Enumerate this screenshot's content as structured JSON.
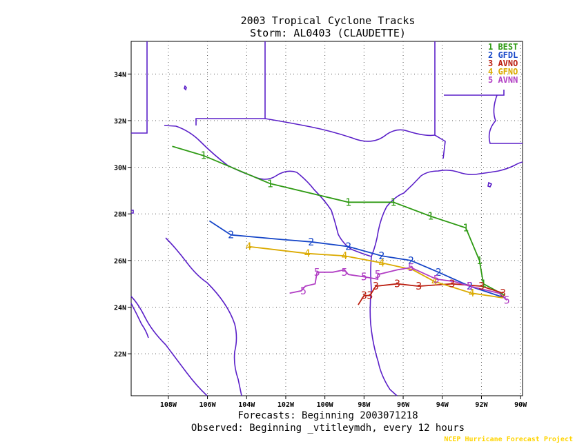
{
  "chart_data": {
    "type": "line",
    "title": "2003 Tropical Cyclone Tracks",
    "subtitle": "Storm: AL0403 (CLAUDETTE)",
    "x_ticks": [
      "108W",
      "106W",
      "104W",
      "102W",
      "100W",
      "98W",
      "96W",
      "94W",
      "92W",
      "90W"
    ],
    "y_ticks": [
      "22N",
      "24N",
      "26N",
      "28N",
      "30N",
      "32N",
      "34N"
    ],
    "xlim": [
      -109.9,
      -89.9
    ],
    "ylim": [
      20.2,
      35.4
    ],
    "grid": true,
    "legend_position": "top-right",
    "series": [
      {
        "id": "1",
        "name": "BEST",
        "color": "#2e9a13",
        "points": [
          [
            -90.8,
            24.5
          ],
          [
            -91.9,
            25.0
          ],
          [
            -92.1,
            26.0
          ],
          [
            -92.8,
            27.4
          ],
          [
            -94.6,
            27.9
          ],
          [
            -96.5,
            28.5
          ],
          [
            -98.8,
            28.5
          ],
          [
            -102.8,
            29.3
          ],
          [
            -106.2,
            30.5
          ],
          [
            -107.8,
            30.9
          ]
        ],
        "markers": [
          [
            -91.9,
            25.0
          ],
          [
            -92.1,
            26.0
          ],
          [
            -92.8,
            27.4
          ],
          [
            -94.6,
            27.9
          ],
          [
            -96.5,
            28.5
          ],
          [
            -98.8,
            28.5
          ],
          [
            -102.8,
            29.3
          ],
          [
            -106.2,
            30.5
          ]
        ]
      },
      {
        "id": "2",
        "name": "GFDL",
        "color": "#1646c8",
        "points": [
          [
            -90.8,
            24.4
          ],
          [
            -92.6,
            24.9
          ],
          [
            -94.2,
            25.5
          ],
          [
            -95.6,
            26.0
          ],
          [
            -97.1,
            26.2
          ],
          [
            -98.8,
            26.6
          ],
          [
            -100.7,
            26.8
          ],
          [
            -102.2,
            26.9
          ],
          [
            -104.8,
            27.1
          ],
          [
            -105.9,
            27.7
          ]
        ],
        "markers": [
          [
            -92.6,
            24.9
          ],
          [
            -94.2,
            25.5
          ],
          [
            -95.6,
            26.0
          ],
          [
            -97.1,
            26.2
          ],
          [
            -98.8,
            26.6
          ],
          [
            -100.7,
            26.8
          ],
          [
            -104.8,
            27.1
          ]
        ]
      },
      {
        "id": "3",
        "name": "AVNO",
        "color": "#bb1e10",
        "points": [
          [
            -90.9,
            24.6
          ],
          [
            -92.0,
            24.9
          ],
          [
            -93.5,
            25.0
          ],
          [
            -95.2,
            24.9
          ],
          [
            -96.3,
            25.0
          ],
          [
            -97.4,
            24.9
          ],
          [
            -97.7,
            24.5
          ],
          [
            -98.0,
            24.5
          ],
          [
            -98.3,
            24.1
          ]
        ],
        "markers": [
          [
            -90.9,
            24.6
          ],
          [
            -92.0,
            24.9
          ],
          [
            -93.5,
            25.0
          ],
          [
            -95.2,
            24.9
          ],
          [
            -96.3,
            25.0
          ],
          [
            -97.4,
            24.9
          ],
          [
            -97.7,
            24.5
          ],
          [
            -98.0,
            24.5
          ]
        ]
      },
      {
        "id": "4",
        "name": "GFNO",
        "color": "#dbaa00",
        "points": [
          [
            -90.9,
            24.4
          ],
          [
            -92.5,
            24.6
          ],
          [
            -94.4,
            25.1
          ],
          [
            -95.5,
            25.6
          ],
          [
            -97.1,
            25.9
          ],
          [
            -99.0,
            26.2
          ],
          [
            -100.9,
            26.3
          ],
          [
            -103.9,
            26.6
          ]
        ],
        "markers": [
          [
            -92.5,
            24.6
          ],
          [
            -94.4,
            25.1
          ],
          [
            -97.1,
            25.9
          ],
          [
            -99.0,
            26.2
          ],
          [
            -100.9,
            26.3
          ],
          [
            -103.9,
            26.6
          ]
        ]
      },
      {
        "id": "5",
        "name": "AVNN",
        "color": "#b13ec4",
        "points": [
          [
            -90.7,
            24.3
          ],
          [
            -91.1,
            24.6
          ],
          [
            -92.6,
            24.9
          ],
          [
            -93.4,
            25.1
          ],
          [
            -94.3,
            25.2
          ],
          [
            -95.6,
            25.7
          ],
          [
            -96.3,
            25.6
          ],
          [
            -97.3,
            25.4
          ],
          [
            -97.3,
            25.2
          ],
          [
            -98.0,
            25.3
          ],
          [
            -98.8,
            25.4
          ],
          [
            -99.0,
            25.6
          ],
          [
            -99.6,
            25.5
          ],
          [
            -100.4,
            25.5
          ],
          [
            -100.5,
            25.0
          ],
          [
            -101.0,
            24.9
          ],
          [
            -101.2,
            24.7
          ],
          [
            -101.8,
            24.6
          ]
        ],
        "markers": [
          [
            -90.7,
            24.3
          ],
          [
            -92.6,
            24.9
          ],
          [
            -94.3,
            25.2
          ],
          [
            -95.6,
            25.7
          ],
          [
            -97.3,
            25.4
          ],
          [
            -98.0,
            25.3
          ],
          [
            -99.0,
            25.5
          ],
          [
            -100.4,
            25.5
          ],
          [
            -101.1,
            24.7
          ]
        ]
      }
    ]
  },
  "footer": {
    "forecasts": "Forecasts: Beginning 2003071218",
    "observed": "Observed: Beginning _vtitleymdh, every 12 hours",
    "credit": "NCEP Hurricane Forecast Project"
  },
  "colors": {
    "map_border": "#5a1fc8",
    "grid": "#555555"
  }
}
